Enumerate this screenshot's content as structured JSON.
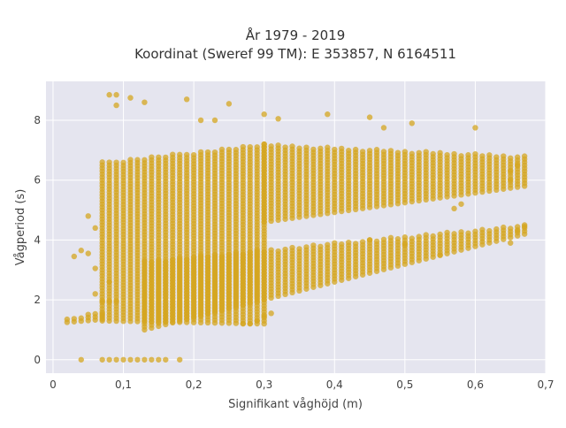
{
  "chart_data": {
    "type": "scatter",
    "title_line1": "År 1979 - 2019",
    "title_line2": "Koordinat (Sweref 99 TM): E 353857, N 6164511",
    "xlabel": "Signifikant våghöjd (m)",
    "ylabel": "Vågperiod (s)",
    "xlim": [
      -0.01,
      0.7
    ],
    "ylim": [
      -0.45,
      9.3
    ],
    "x_ticks": [
      0,
      0.1,
      0.2,
      0.3,
      0.4,
      0.5,
      0.6,
      0.7
    ],
    "x_tick_labels": [
      "0",
      "0,1",
      "0,2",
      "0,3",
      "0,4",
      "0,5",
      "0,6",
      "0,7"
    ],
    "y_ticks": [
      0,
      2,
      4,
      6,
      8
    ],
    "y_tick_labels": [
      "0",
      "2",
      "4",
      "6",
      "8"
    ],
    "grid": true,
    "marker_color": "#D4A520",
    "background_color": "#E5E5EF",
    "series": [
      {
        "values_description": "band",
        "bands": [
          {
            "x_start": 0.02,
            "x_end": 0.07,
            "x_step": 0.01,
            "y_min_start": 1.25,
            "y_min_end": 1.35,
            "y_max_start": 1.4,
            "y_max_end": 1.6
          },
          {
            "x_start": 0.07,
            "x_end": 0.3,
            "x_step": 0.01,
            "y_min_start": 1.3,
            "y_min_end": 1.2,
            "y_max_start": 6.6,
            "y_max_end": 7.2
          },
          {
            "x_start": 0.13,
            "x_end": 0.67,
            "x_step": 0.01,
            "y_min_start": 1.0,
            "y_min_end": 4.2,
            "y_max_start": 3.3,
            "y_max_end": 4.5
          },
          {
            "x_start": 0.3,
            "x_end": 0.67,
            "x_step": 0.01,
            "y_min_start": 4.6,
            "y_min_end": 5.8,
            "y_max_start": 7.2,
            "y_max_end": 6.8
          }
        ],
        "extra_points": [
          [
            0.04,
            0.0
          ],
          [
            0.07,
            0.0
          ],
          [
            0.08,
            0.0
          ],
          [
            0.09,
            0.0
          ],
          [
            0.1,
            0.0
          ],
          [
            0.11,
            0.0
          ],
          [
            0.12,
            0.0
          ],
          [
            0.13,
            0.0
          ],
          [
            0.14,
            0.0
          ],
          [
            0.15,
            0.0
          ],
          [
            0.16,
            0.0
          ],
          [
            0.18,
            0.0
          ],
          [
            0.08,
            8.85
          ],
          [
            0.09,
            8.85
          ],
          [
            0.09,
            8.5
          ],
          [
            0.11,
            8.75
          ],
          [
            0.13,
            8.6
          ],
          [
            0.19,
            8.7
          ],
          [
            0.21,
            8.0
          ],
          [
            0.23,
            8.0
          ],
          [
            0.25,
            8.55
          ],
          [
            0.3,
            8.2
          ],
          [
            0.32,
            8.05
          ],
          [
            0.39,
            8.2
          ],
          [
            0.45,
            8.1
          ],
          [
            0.51,
            7.9
          ],
          [
            0.47,
            7.75
          ],
          [
            0.6,
            7.75
          ],
          [
            0.03,
            3.45
          ],
          [
            0.04,
            3.65
          ],
          [
            0.05,
            3.55
          ],
          [
            0.06,
            3.05
          ],
          [
            0.06,
            2.2
          ],
          [
            0.07,
            1.95
          ],
          [
            0.08,
            1.95
          ],
          [
            0.09,
            1.95
          ],
          [
            0.08,
            2.6
          ],
          [
            0.06,
            4.4
          ],
          [
            0.05,
            4.8
          ],
          [
            0.65,
            6.3
          ],
          [
            0.66,
            6.5
          ],
          [
            0.65,
            6.0
          ],
          [
            0.67,
            4.45
          ],
          [
            0.66,
            4.3
          ],
          [
            0.65,
            3.9
          ],
          [
            0.31,
            1.55
          ],
          [
            0.3,
            1.45
          ],
          [
            0.29,
            1.3
          ],
          [
            0.28,
            1.2
          ],
          [
            0.27,
            1.2
          ],
          [
            0.5,
            3.85
          ],
          [
            0.45,
            4.0
          ],
          [
            0.55,
            3.5
          ],
          [
            0.58,
            5.2
          ],
          [
            0.57,
            5.05
          ]
        ]
      }
    ]
  }
}
